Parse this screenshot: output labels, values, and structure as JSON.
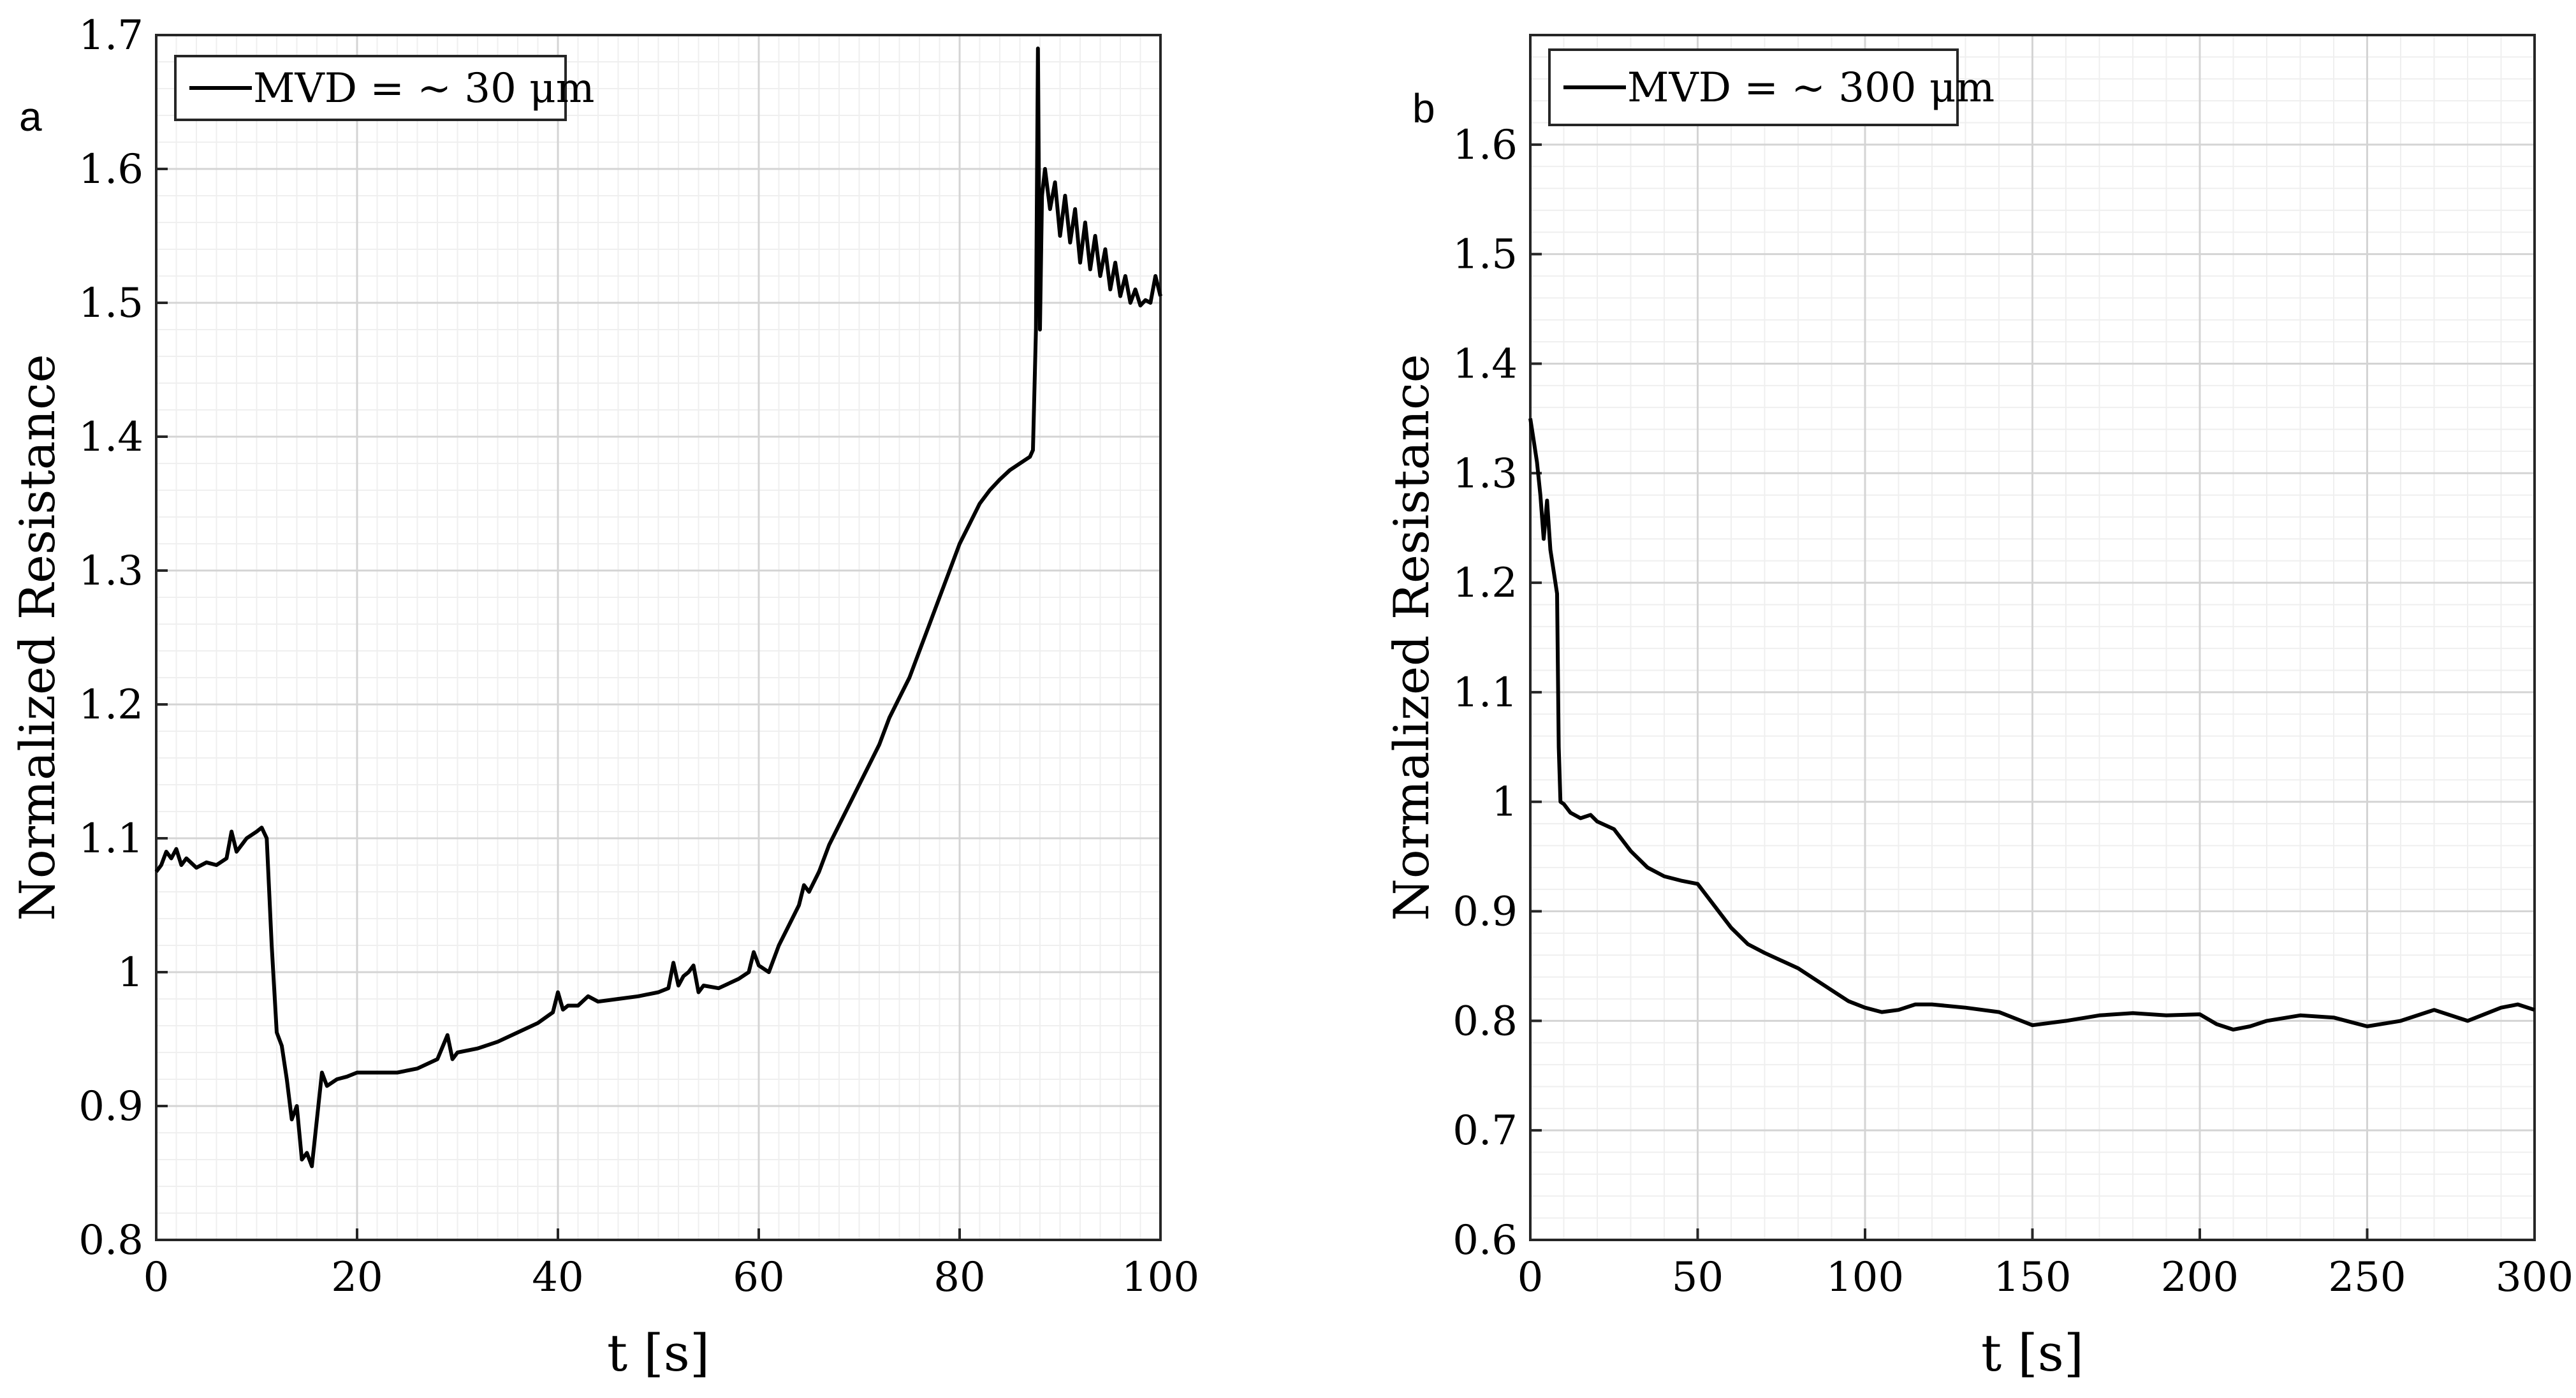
{
  "figure": {
    "panels": [
      "a",
      "b"
    ]
  },
  "chart_data": [
    {
      "type": "line",
      "panel_label": "a",
      "xlabel": "t [s]",
      "ylabel": "Normalized Resistance",
      "xlim": [
        0,
        100
      ],
      "ylim": [
        0.8,
        1.7
      ],
      "xticks": [
        0,
        20,
        40,
        60,
        80,
        100
      ],
      "xtick_labels": [
        "0",
        "20",
        "40",
        "60",
        "80",
        "100"
      ],
      "yticks": [
        0.8,
        0.9,
        1.0,
        1.1,
        1.2,
        1.3,
        1.4,
        1.5,
        1.6,
        1.7
      ],
      "ytick_labels": [
        "0.8",
        "0.9",
        "1",
        "1.1",
        "1.2",
        "1.3",
        "1.4",
        "1.5",
        "1.6",
        "1.7"
      ],
      "grid": true,
      "minor_grid": true,
      "legend": {
        "label": "MVD = ~ 30 μm",
        "placement": "top-left"
      },
      "series": [
        {
          "name": "MVD = ~ 30 μm",
          "color": "#000000",
          "x": [
            0,
            0.5,
            1,
            1.5,
            2,
            2.5,
            3,
            4,
            5,
            6,
            7,
            7.5,
            8,
            9,
            10,
            10.5,
            11,
            11.5,
            12,
            12.5,
            13,
            13.5,
            14,
            14.5,
            15,
            15.5,
            16,
            16.5,
            17,
            18,
            19,
            20,
            22,
            24,
            26,
            28,
            29,
            29.5,
            30,
            32,
            34,
            36,
            38,
            39.5,
            40,
            40.5,
            41,
            42,
            43,
            44,
            46,
            48,
            50,
            51,
            51.5,
            52,
            52.5,
            53,
            53.5,
            54,
            54.5,
            56,
            58,
            59,
            59.5,
            60,
            61,
            62,
            63,
            64,
            64.5,
            65,
            66,
            67,
            68,
            69,
            70,
            71,
            72,
            73,
            74,
            75,
            76,
            77,
            78,
            79,
            80,
            81,
            82,
            83,
            84,
            85,
            86,
            87,
            87.3,
            87.6,
            87.8,
            88,
            88.2,
            88.5,
            89,
            89.5,
            90,
            90.5,
            91,
            91.5,
            92,
            92.5,
            93,
            93.5,
            94,
            94.5,
            95,
            95.5,
            96,
            96.5,
            97,
            97.5,
            98,
            98.5,
            99,
            99.5,
            100
          ],
          "y": [
            1.075,
            1.08,
            1.09,
            1.085,
            1.092,
            1.08,
            1.085,
            1.078,
            1.082,
            1.08,
            1.085,
            1.105,
            1.09,
            1.1,
            1.105,
            1.108,
            1.1,
            1.02,
            0.955,
            0.945,
            0.92,
            0.89,
            0.9,
            0.86,
            0.865,
            0.855,
            0.89,
            0.925,
            0.915,
            0.92,
            0.922,
            0.925,
            0.925,
            0.925,
            0.928,
            0.935,
            0.953,
            0.935,
            0.94,
            0.943,
            0.948,
            0.955,
            0.962,
            0.97,
            0.985,
            0.972,
            0.975,
            0.975,
            0.982,
            0.978,
            0.98,
            0.982,
            0.985,
            0.988,
            1.007,
            0.99,
            0.997,
            1.0,
            1.005,
            0.985,
            0.99,
            0.988,
            0.995,
            1.0,
            1.015,
            1.005,
            1.0,
            1.02,
            1.035,
            1.05,
            1.065,
            1.06,
            1.075,
            1.095,
            1.11,
            1.125,
            1.14,
            1.155,
            1.17,
            1.19,
            1.205,
            1.22,
            1.24,
            1.26,
            1.28,
            1.3,
            1.32,
            1.335,
            1.35,
            1.36,
            1.368,
            1.375,
            1.38,
            1.385,
            1.39,
            1.48,
            1.69,
            1.48,
            1.58,
            1.6,
            1.57,
            1.59,
            1.55,
            1.58,
            1.545,
            1.57,
            1.53,
            1.56,
            1.525,
            1.55,
            1.52,
            1.54,
            1.51,
            1.53,
            1.505,
            1.52,
            1.5,
            1.51,
            1.498,
            1.502,
            1.5,
            1.52,
            1.505
          ]
        }
      ]
    },
    {
      "type": "line",
      "panel_label": "b",
      "xlabel": "t [s]",
      "ylabel": "Normalized Resistance",
      "xlim": [
        0,
        300
      ],
      "ylim": [
        0.6,
        1.7
      ],
      "xticks": [
        0,
        50,
        100,
        150,
        200,
        250,
        300
      ],
      "xtick_labels": [
        "0",
        "50",
        "100",
        "150",
        "200",
        "250",
        "300"
      ],
      "yticks": [
        0.6,
        0.7,
        0.8,
        0.9,
        1.0,
        1.1,
        1.2,
        1.3,
        1.4,
        1.5,
        1.6
      ],
      "ytick_labels": [
        "0.6",
        "0.7",
        "0.8",
        "0.9",
        "1",
        "1.1",
        "1.2",
        "1.3",
        "1.4",
        "1.5",
        "1.6"
      ],
      "grid": true,
      "minor_grid": true,
      "legend": {
        "label": "MVD = ~ 300 μm",
        "placement": "top-left"
      },
      "series": [
        {
          "name": "MVD = ~ 300 μm",
          "color": "#000000",
          "x": [
            0,
            1,
            2,
            3,
            4,
            5,
            6,
            7,
            8,
            8.5,
            9,
            10,
            12,
            15,
            18,
            20,
            25,
            30,
            35,
            40,
            45,
            50,
            55,
            60,
            65,
            70,
            75,
            80,
            85,
            90,
            95,
            100,
            105,
            110,
            115,
            120,
            130,
            140,
            150,
            160,
            170,
            180,
            190,
            200,
            205,
            210,
            215,
            220,
            230,
            240,
            250,
            260,
            270,
            280,
            290,
            295,
            300
          ],
          "y": [
            1.35,
            1.33,
            1.31,
            1.28,
            1.24,
            1.275,
            1.23,
            1.21,
            1.19,
            1.05,
            1.0,
            0.998,
            0.99,
            0.985,
            0.988,
            0.982,
            0.975,
            0.955,
            0.94,
            0.932,
            0.928,
            0.925,
            0.905,
            0.885,
            0.87,
            0.862,
            0.855,
            0.848,
            0.838,
            0.828,
            0.818,
            0.812,
            0.808,
            0.81,
            0.815,
            0.815,
            0.812,
            0.808,
            0.796,
            0.8,
            0.805,
            0.807,
            0.805,
            0.806,
            0.797,
            0.792,
            0.795,
            0.8,
            0.805,
            0.803,
            0.795,
            0.8,
            0.81,
            0.8,
            0.812,
            0.815,
            0.81
          ]
        }
      ]
    }
  ]
}
